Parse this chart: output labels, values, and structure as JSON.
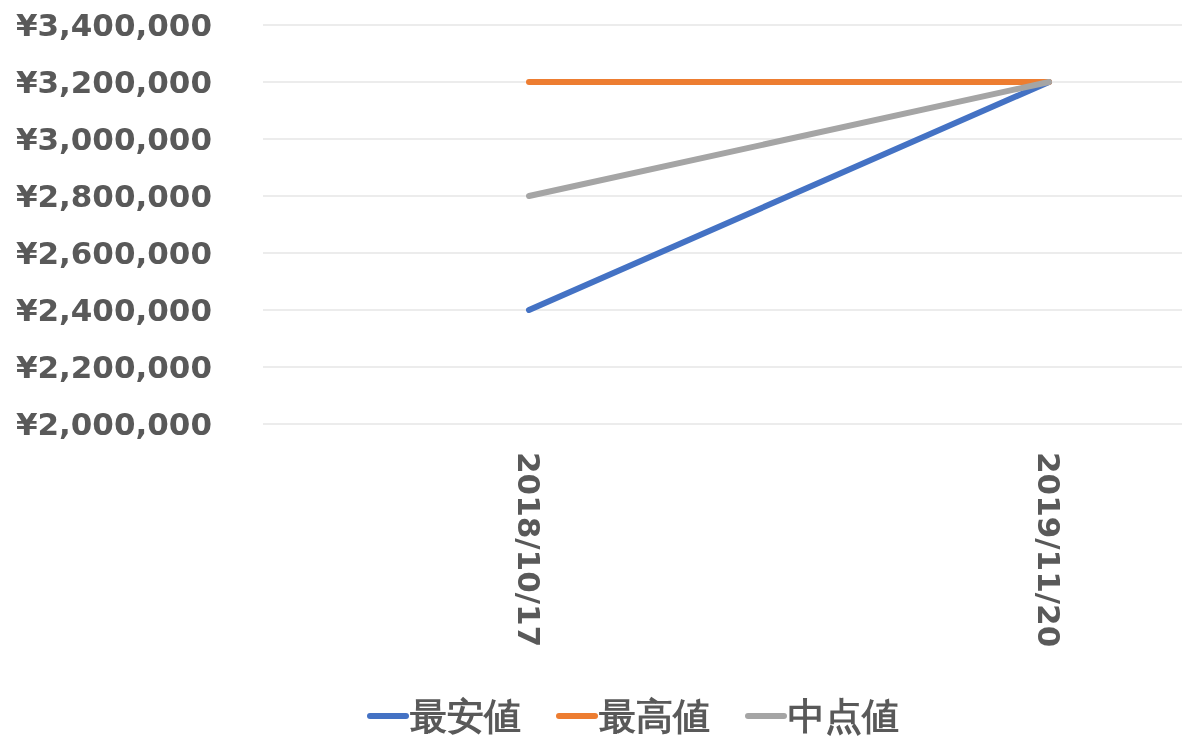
{
  "chart_data": {
    "type": "line",
    "categories": [
      "2018/10/17",
      "2019/11/20"
    ],
    "series": [
      {
        "name": "最安値",
        "color": "#4472c4",
        "values": [
          2400000,
          3200000
        ]
      },
      {
        "name": "最高値",
        "color": "#ed7d31",
        "values": [
          3200000,
          3200000
        ]
      },
      {
        "name": "中点値",
        "color": "#a5a5a5",
        "values": [
          2800000,
          3200000
        ]
      }
    ],
    "ylim": [
      2000000,
      3400000
    ],
    "yticks": [
      {
        "value": 2000000,
        "label": "¥2,000,000"
      },
      {
        "value": 2200000,
        "label": "¥2,200,000"
      },
      {
        "value": 2400000,
        "label": "¥2,400,000"
      },
      {
        "value": 2600000,
        "label": "¥2,600,000"
      },
      {
        "value": 2800000,
        "label": "¥2,800,000"
      },
      {
        "value": 3000000,
        "label": "¥3,000,000"
      },
      {
        "value": 3200000,
        "label": "¥3,200,000"
      },
      {
        "value": 3400000,
        "label": "¥3,400,000"
      }
    ],
    "grid": "y",
    "legend": "bottom",
    "marker": "none",
    "line_style": "solid"
  }
}
